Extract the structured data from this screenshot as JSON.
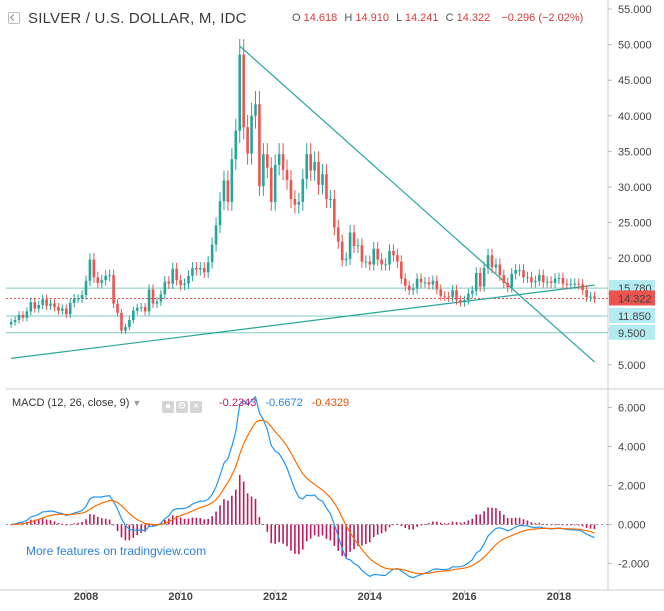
{
  "header": {
    "symbol": "SILVER / U.S. DOLLAR, M, IDC",
    "o_label": "O",
    "o_value": "14.618",
    "h_label": "H",
    "h_value": "14.910",
    "l_label": "L",
    "l_value": "14.241",
    "c_label": "C",
    "c_value": "14.322",
    "change": "−0.296 (−2.02%)"
  },
  "macd_header": {
    "title": "MACD (12, 26, close, 9)",
    "hist_value": "-0.2343",
    "macd_value": "-0.6672",
    "signal_value": "-0.4329"
  },
  "promo_text": "More features on tradingview.com",
  "colors": {
    "up": "#26a69a",
    "down": "#ef5350",
    "trendline": "#26a69a",
    "hline": "#80cbc4",
    "last_price": "#ef5350",
    "macd": "#2196f3",
    "signal": "#ff6d00",
    "histogram": "#c2185b",
    "badge_bg": "#b2ebf2",
    "last_badge_bg": "#ef5350"
  },
  "chart_data": {
    "type": "candlestick",
    "ylim": [
      3.0,
      56.0
    ],
    "yticks": [
      "55.000",
      "50.000",
      "45.000",
      "40.000",
      "35.000",
      "30.000",
      "25.000",
      "20.000",
      "15.000",
      "10.000",
      "5.000"
    ],
    "xticks": [
      "2008",
      "2010",
      "2012",
      "2014",
      "2016",
      "2018"
    ],
    "price_labels": [
      {
        "text": "15.780",
        "value": 15.78,
        "kind": "line"
      },
      {
        "text": "14.322",
        "value": 14.322,
        "kind": "last"
      },
      {
        "text": "11.850",
        "value": 11.85,
        "kind": "line"
      },
      {
        "text": "9.500",
        "value": 9.5,
        "kind": "line"
      }
    ],
    "horizontal_lines": [
      15.78,
      11.85,
      9.5
    ],
    "trendlines": [
      {
        "from": [
          "2011-04",
          49.8
        ],
        "to": [
          "2018-10",
          5.4
        ]
      },
      {
        "from": [
          "2006-06",
          5.9
        ],
        "to": [
          "2018-10",
          16.2
        ]
      }
    ],
    "monthly_close": [
      [
        "2006-06",
        11.0
      ],
      [
        "2006-07",
        11.3
      ],
      [
        "2006-08",
        12.0
      ],
      [
        "2006-09",
        11.6
      ],
      [
        "2006-10",
        12.5
      ],
      [
        "2006-11",
        13.8
      ],
      [
        "2006-12",
        12.9
      ],
      [
        "2007-01",
        13.4
      ],
      [
        "2007-02",
        14.2
      ],
      [
        "2007-03",
        13.3
      ],
      [
        "2007-04",
        13.6
      ],
      [
        "2007-05",
        13.1
      ],
      [
        "2007-06",
        12.6
      ],
      [
        "2007-07",
        12.9
      ],
      [
        "2007-08",
        12.1
      ],
      [
        "2007-09",
        13.7
      ],
      [
        "2007-10",
        14.3
      ],
      [
        "2007-11",
        14.3
      ],
      [
        "2007-12",
        14.8
      ],
      [
        "2008-01",
        16.8
      ],
      [
        "2008-02",
        19.8
      ],
      [
        "2008-03",
        17.3
      ],
      [
        "2008-04",
        16.5
      ],
      [
        "2008-05",
        16.9
      ],
      [
        "2008-06",
        17.5
      ],
      [
        "2008-07",
        17.6
      ],
      [
        "2008-08",
        13.6
      ],
      [
        "2008-09",
        12.3
      ],
      [
        "2008-10",
        9.8
      ],
      [
        "2008-11",
        10.3
      ],
      [
        "2008-12",
        11.3
      ],
      [
        "2009-01",
        12.6
      ],
      [
        "2009-02",
        13.0
      ],
      [
        "2009-03",
        13.1
      ],
      [
        "2009-04",
        12.5
      ],
      [
        "2009-05",
        15.6
      ],
      [
        "2009-06",
        13.6
      ],
      [
        "2009-07",
        13.9
      ],
      [
        "2009-08",
        14.9
      ],
      [
        "2009-09",
        16.7
      ],
      [
        "2009-10",
        16.4
      ],
      [
        "2009-11",
        18.5
      ],
      [
        "2009-12",
        16.9
      ],
      [
        "2010-01",
        16.2
      ],
      [
        "2010-02",
        16.4
      ],
      [
        "2010-03",
        17.5
      ],
      [
        "2010-04",
        18.6
      ],
      [
        "2010-05",
        18.4
      ],
      [
        "2010-06",
        18.6
      ],
      [
        "2010-07",
        18.0
      ],
      [
        "2010-08",
        19.4
      ],
      [
        "2010-09",
        21.9
      ],
      [
        "2010-10",
        24.6
      ],
      [
        "2010-11",
        28.0
      ],
      [
        "2010-12",
        30.9
      ],
      [
        "2011-01",
        27.9
      ],
      [
        "2011-02",
        33.9
      ],
      [
        "2011-03",
        37.9
      ],
      [
        "2011-04",
        48.6
      ],
      [
        "2011-05",
        38.4
      ],
      [
        "2011-06",
        34.7
      ],
      [
        "2011-07",
        40.0
      ],
      [
        "2011-08",
        41.6
      ],
      [
        "2011-09",
        30.1
      ],
      [
        "2011-10",
        34.6
      ],
      [
        "2011-11",
        32.7
      ],
      [
        "2011-12",
        27.9
      ],
      [
        "2012-01",
        33.1
      ],
      [
        "2012-02",
        34.6
      ],
      [
        "2012-03",
        32.4
      ],
      [
        "2012-04",
        31.0
      ],
      [
        "2012-05",
        28.3
      ],
      [
        "2012-06",
        27.5
      ],
      [
        "2012-07",
        27.9
      ],
      [
        "2012-08",
        31.1
      ],
      [
        "2012-09",
        34.6
      ],
      [
        "2012-10",
        32.3
      ],
      [
        "2012-11",
        33.5
      ],
      [
        "2012-12",
        30.3
      ],
      [
        "2013-01",
        31.8
      ],
      [
        "2013-02",
        28.3
      ],
      [
        "2013-03",
        28.3
      ],
      [
        "2013-04",
        24.3
      ],
      [
        "2013-05",
        22.3
      ],
      [
        "2013-06",
        19.7
      ],
      [
        "2013-07",
        19.9
      ],
      [
        "2013-08",
        23.6
      ],
      [
        "2013-09",
        21.7
      ],
      [
        "2013-10",
        21.8
      ],
      [
        "2013-11",
        19.5
      ],
      [
        "2013-12",
        19.5
      ],
      [
        "2014-01",
        19.1
      ],
      [
        "2014-02",
        21.3
      ],
      [
        "2014-03",
        19.8
      ],
      [
        "2014-04",
        19.1
      ],
      [
        "2014-05",
        19.1
      ],
      [
        "2014-06",
        21.0
      ],
      [
        "2014-07",
        20.4
      ],
      [
        "2014-08",
        19.5
      ],
      [
        "2014-09",
        17.1
      ],
      [
        "2014-10",
        16.1
      ],
      [
        "2014-11",
        15.5
      ],
      [
        "2014-12",
        15.7
      ],
      [
        "2015-01",
        17.1
      ],
      [
        "2015-02",
        16.6
      ],
      [
        "2015-03",
        16.6
      ],
      [
        "2015-04",
        16.3
      ],
      [
        "2015-05",
        16.8
      ],
      [
        "2015-06",
        15.6
      ],
      [
        "2015-07",
        14.7
      ],
      [
        "2015-08",
        14.6
      ],
      [
        "2015-09",
        14.5
      ],
      [
        "2015-10",
        15.5
      ],
      [
        "2015-11",
        14.1
      ],
      [
        "2015-12",
        13.8
      ],
      [
        "2016-01",
        14.1
      ],
      [
        "2016-02",
        15.0
      ],
      [
        "2016-03",
        15.4
      ],
      [
        "2016-04",
        17.9
      ],
      [
        "2016-05",
        16.0
      ],
      [
        "2016-06",
        18.6
      ],
      [
        "2016-07",
        20.4
      ],
      [
        "2016-08",
        18.7
      ],
      [
        "2016-09",
        19.1
      ],
      [
        "2016-10",
        17.6
      ],
      [
        "2016-11",
        16.5
      ],
      [
        "2016-12",
        15.9
      ],
      [
        "2017-01",
        17.8
      ],
      [
        "2017-02",
        18.3
      ],
      [
        "2017-03",
        18.3
      ],
      [
        "2017-04",
        17.3
      ],
      [
        "2017-05",
        17.3
      ],
      [
        "2017-06",
        16.6
      ],
      [
        "2017-07",
        16.8
      ],
      [
        "2017-08",
        17.6
      ],
      [
        "2017-09",
        16.6
      ],
      [
        "2017-10",
        16.7
      ],
      [
        "2017-11",
        16.5
      ],
      [
        "2017-12",
        17.1
      ],
      [
        "2018-01",
        17.2
      ],
      [
        "2018-02",
        16.4
      ],
      [
        "2018-03",
        16.3
      ],
      [
        "2018-04",
        16.4
      ],
      [
        "2018-05",
        16.4
      ],
      [
        "2018-06",
        16.3
      ],
      [
        "2018-07",
        15.5
      ],
      [
        "2018-08",
        14.5
      ],
      [
        "2018-09",
        14.6
      ],
      [
        "2018-10",
        14.3
      ]
    ],
    "macd": {
      "ylim": [
        -3.0,
        7.0
      ],
      "yticks": [
        "6.000",
        "4.000",
        "2.000",
        "0.000",
        "-2.000"
      ],
      "zero_line": true
    }
  }
}
